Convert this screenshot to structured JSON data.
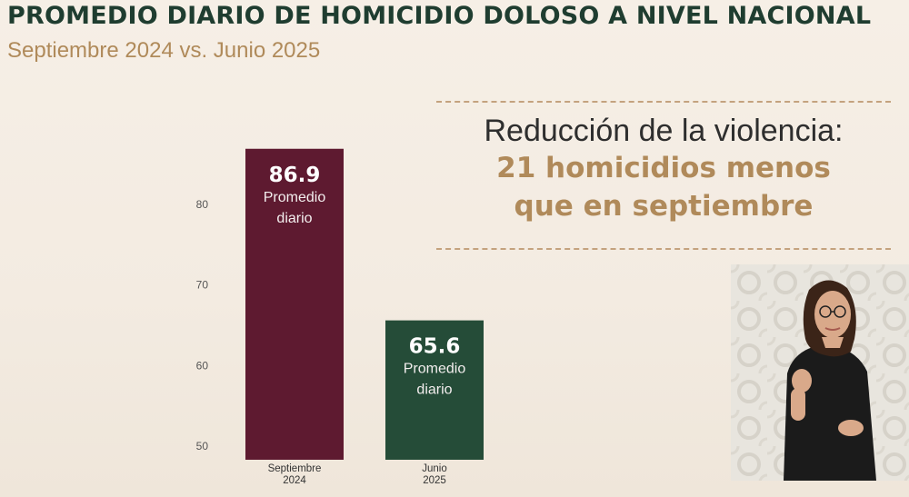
{
  "header": {
    "title": "PROMEDIO DIARIO DE HOMICIDIO DOLOSO A NIVEL NACIONAL",
    "subtitle": "Septiembre 2024 vs. Junio 2025"
  },
  "callout": {
    "lead": "Reducción de la violencia:",
    "line1": "21 homicidios menos",
    "line2": "que en septiembre"
  },
  "colors": {
    "bar_sep": "#5e1a30",
    "bar_jun": "#254c38",
    "title": "#1f3d30",
    "accent": "#b08a5a"
  },
  "chart_data": {
    "type": "bar",
    "categories": [
      [
        "Septiembre",
        "2024"
      ],
      [
        "Junio",
        "2025"
      ]
    ],
    "values": [
      86.9,
      65.6
    ],
    "value_labels": [
      "86.9",
      "65.6"
    ],
    "bar_caption": [
      "Promedio",
      "diario"
    ],
    "y_ticks": [
      50,
      60,
      70,
      80
    ],
    "ylim": [
      48.3,
      88
    ],
    "grid": false,
    "legend": "none"
  },
  "media": {
    "interpreter_icon": "sign-language-interpreter-video"
  }
}
